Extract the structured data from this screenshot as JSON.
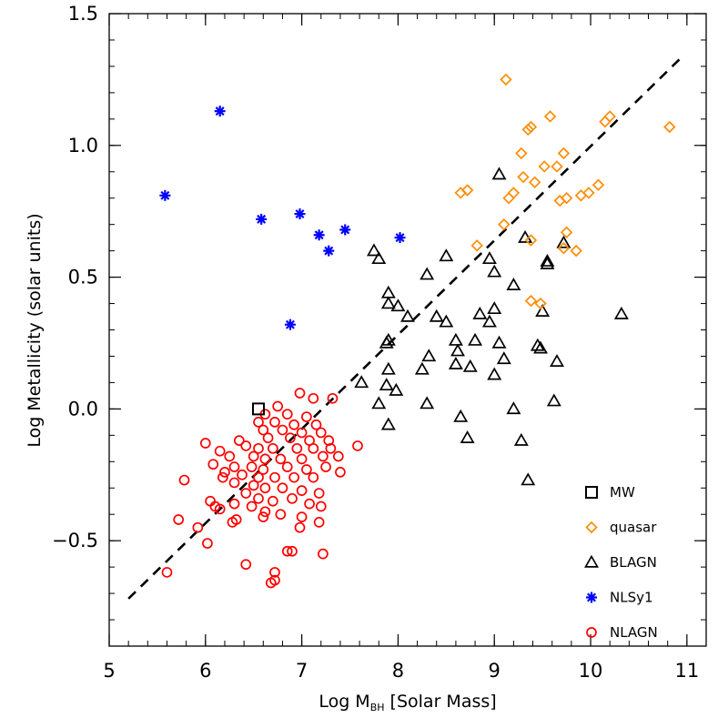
{
  "chart_data": {
    "type": "scatter",
    "xlabel": "Log M",
    "xlabel_sub": "BH",
    "xlabel_suffix": " [Solar Mass]",
    "ylabel": "Log Metallicity (solar units)",
    "xlim": [
      5,
      11.2
    ],
    "ylim": [
      -0.9,
      1.5
    ],
    "x_ticks": [
      {
        "value": 5,
        "label": "5"
      },
      {
        "value": 6,
        "label": "6"
      },
      {
        "value": 7,
        "label": "7"
      },
      {
        "value": 8,
        "label": "8"
      },
      {
        "value": 9,
        "label": "9"
      },
      {
        "value": 10,
        "label": "10"
      },
      {
        "value": 11,
        "label": "11"
      }
    ],
    "y_ticks": [
      {
        "value": -0.5,
        "label": "−0.5"
      },
      {
        "value": 0.0,
        "label": "0.0"
      },
      {
        "value": 0.5,
        "label": "0.5"
      },
      {
        "value": 1.0,
        "label": "1.0"
      },
      {
        "value": 1.5,
        "label": "1.5"
      }
    ],
    "x_minor_step": 0.2,
    "y_minor_step": 0.1,
    "legend_position": "bottom-right",
    "fit_line": {
      "x": [
        5.2,
        10.96
      ],
      "y": [
        -0.72,
        1.34
      ],
      "style": "dashed",
      "color": "#000000"
    },
    "series": [
      {
        "name": "MW",
        "marker": "square",
        "color": "#000000",
        "points": [
          [
            6.55,
            0.0
          ]
        ]
      },
      {
        "name": "quasar",
        "marker": "diamond",
        "color": "#ff8c00",
        "points": [
          [
            9.12,
            1.25
          ],
          [
            9.35,
            1.06
          ],
          [
            9.38,
            1.07
          ],
          [
            9.58,
            1.11
          ],
          [
            10.15,
            1.09
          ],
          [
            10.2,
            1.11
          ],
          [
            10.82,
            1.07
          ],
          [
            9.28,
            0.97
          ],
          [
            9.72,
            0.97
          ],
          [
            9.52,
            0.92
          ],
          [
            9.65,
            0.92
          ],
          [
            9.3,
            0.88
          ],
          [
            9.42,
            0.86
          ],
          [
            10.08,
            0.85
          ],
          [
            9.98,
            0.82
          ],
          [
            9.9,
            0.81
          ],
          [
            9.75,
            0.8
          ],
          [
            9.68,
            0.79
          ],
          [
            9.15,
            0.8
          ],
          [
            9.2,
            0.82
          ],
          [
            8.65,
            0.82
          ],
          [
            8.72,
            0.83
          ],
          [
            9.1,
            0.7
          ],
          [
            9.75,
            0.67
          ],
          [
            9.72,
            0.61
          ],
          [
            9.85,
            0.6
          ],
          [
            8.82,
            0.62
          ],
          [
            9.38,
            0.64
          ],
          [
            9.38,
            0.41
          ],
          [
            9.48,
            0.4
          ]
        ]
      },
      {
        "name": "BLAGN",
        "marker": "triangle",
        "color": "#000000",
        "points": [
          [
            9.05,
            0.89
          ],
          [
            9.32,
            0.65
          ],
          [
            9.72,
            0.63
          ],
          [
            7.75,
            0.6
          ],
          [
            7.8,
            0.57
          ],
          [
            8.5,
            0.58
          ],
          [
            8.95,
            0.57
          ],
          [
            9.55,
            0.56
          ],
          [
            9.55,
            0.55
          ],
          [
            8.3,
            0.51
          ],
          [
            9.0,
            0.52
          ],
          [
            9.2,
            0.47
          ],
          [
            7.9,
            0.44
          ],
          [
            7.9,
            0.4
          ],
          [
            8.0,
            0.39
          ],
          [
            8.1,
            0.35
          ],
          [
            8.4,
            0.35
          ],
          [
            8.5,
            0.33
          ],
          [
            8.85,
            0.36
          ],
          [
            9.0,
            0.38
          ],
          [
            8.95,
            0.33
          ],
          [
            9.5,
            0.37
          ],
          [
            10.32,
            0.36
          ],
          [
            7.9,
            0.26
          ],
          [
            7.88,
            0.25
          ],
          [
            8.32,
            0.2
          ],
          [
            8.6,
            0.26
          ],
          [
            8.62,
            0.22
          ],
          [
            8.8,
            0.26
          ],
          [
            9.05,
            0.25
          ],
          [
            9.1,
            0.19
          ],
          [
            9.45,
            0.24
          ],
          [
            9.48,
            0.23
          ],
          [
            9.65,
            0.18
          ],
          [
            8.25,
            0.15
          ],
          [
            7.9,
            0.15
          ],
          [
            8.6,
            0.17
          ],
          [
            8.75,
            0.16
          ],
          [
            9.0,
            0.13
          ],
          [
            7.62,
            0.1
          ],
          [
            7.88,
            0.09
          ],
          [
            7.98,
            0.07
          ],
          [
            7.8,
            0.02
          ],
          [
            8.3,
            0.02
          ],
          [
            9.62,
            0.03
          ],
          [
            9.2,
            0.0
          ],
          [
            8.65,
            -0.03
          ],
          [
            8.72,
            -0.11
          ],
          [
            7.9,
            -0.06
          ],
          [
            9.28,
            -0.12
          ],
          [
            9.35,
            -0.27
          ]
        ]
      },
      {
        "name": "NLSy1",
        "marker": "asterisk",
        "color": "#0000ff",
        "points": [
          [
            6.15,
            1.13
          ],
          [
            5.58,
            0.81
          ],
          [
            6.58,
            0.72
          ],
          [
            6.98,
            0.74
          ],
          [
            7.18,
            0.66
          ],
          [
            7.45,
            0.68
          ],
          [
            8.02,
            0.65
          ],
          [
            7.28,
            0.6
          ],
          [
            6.88,
            0.32
          ]
        ]
      },
      {
        "name": "NLAGN",
        "marker": "circle",
        "color": "#ff0000",
        "points": [
          [
            6.98,
            0.06
          ],
          [
            7.12,
            0.04
          ],
          [
            7.32,
            0.04
          ],
          [
            6.75,
            0.01
          ],
          [
            6.62,
            -0.02
          ],
          [
            6.85,
            -0.02
          ],
          [
            7.05,
            -0.03
          ],
          [
            6.55,
            -0.05
          ],
          [
            6.72,
            -0.05
          ],
          [
            6.92,
            -0.06
          ],
          [
            7.15,
            -0.06
          ],
          [
            6.6,
            -0.08
          ],
          [
            6.8,
            -0.08
          ],
          [
            7.0,
            -0.09
          ],
          [
            7.2,
            -0.09
          ],
          [
            6.65,
            -0.11
          ],
          [
            6.88,
            -0.11
          ],
          [
            7.08,
            -0.12
          ],
          [
            7.28,
            -0.12
          ],
          [
            6.35,
            -0.12
          ],
          [
            6.42,
            -0.14
          ],
          [
            6.55,
            -0.15
          ],
          [
            6.7,
            -0.15
          ],
          [
            6.95,
            -0.15
          ],
          [
            7.12,
            -0.15
          ],
          [
            7.3,
            -0.15
          ],
          [
            7.58,
            -0.14
          ],
          [
            6.0,
            -0.13
          ],
          [
            6.15,
            -0.16
          ],
          [
            6.25,
            -0.18
          ],
          [
            6.5,
            -0.18
          ],
          [
            6.62,
            -0.19
          ],
          [
            6.78,
            -0.19
          ],
          [
            7.0,
            -0.19
          ],
          [
            7.22,
            -0.18
          ],
          [
            7.38,
            -0.18
          ],
          [
            6.08,
            -0.21
          ],
          [
            6.3,
            -0.22
          ],
          [
            6.48,
            -0.22
          ],
          [
            6.6,
            -0.23
          ],
          [
            6.85,
            -0.22
          ],
          [
            7.05,
            -0.23
          ],
          [
            7.25,
            -0.22
          ],
          [
            6.2,
            -0.24
          ],
          [
            6.38,
            -0.25
          ],
          [
            6.55,
            -0.26
          ],
          [
            6.72,
            -0.26
          ],
          [
            6.92,
            -0.26
          ],
          [
            7.12,
            -0.26
          ],
          [
            7.4,
            -0.24
          ],
          [
            6.18,
            -0.26
          ],
          [
            6.3,
            -0.28
          ],
          [
            6.5,
            -0.29
          ],
          [
            6.62,
            -0.3
          ],
          [
            6.8,
            -0.3
          ],
          [
            7.0,
            -0.31
          ],
          [
            7.18,
            -0.32
          ],
          [
            6.42,
            -0.32
          ],
          [
            6.55,
            -0.34
          ],
          [
            6.7,
            -0.35
          ],
          [
            6.9,
            -0.34
          ],
          [
            7.08,
            -0.36
          ],
          [
            6.05,
            -0.35
          ],
          [
            6.1,
            -0.37
          ],
          [
            6.15,
            -0.38
          ],
          [
            6.3,
            -0.36
          ],
          [
            6.48,
            -0.37
          ],
          [
            6.62,
            -0.39
          ],
          [
            6.78,
            -0.4
          ],
          [
            7.0,
            -0.41
          ],
          [
            7.2,
            -0.37
          ],
          [
            5.78,
            -0.27
          ],
          [
            5.72,
            -0.42
          ],
          [
            5.92,
            -0.45
          ],
          [
            6.28,
            -0.43
          ],
          [
            6.32,
            -0.42
          ],
          [
            6.6,
            -0.41
          ],
          [
            6.98,
            -0.45
          ],
          [
            7.18,
            -0.43
          ],
          [
            6.02,
            -0.51
          ],
          [
            6.42,
            -0.59
          ],
          [
            6.85,
            -0.54
          ],
          [
            6.9,
            -0.54
          ],
          [
            7.22,
            -0.55
          ],
          [
            6.72,
            -0.62
          ],
          [
            6.72,
            -0.65
          ],
          [
            6.68,
            -0.66
          ],
          [
            5.6,
            -0.62
          ]
        ]
      }
    ]
  }
}
